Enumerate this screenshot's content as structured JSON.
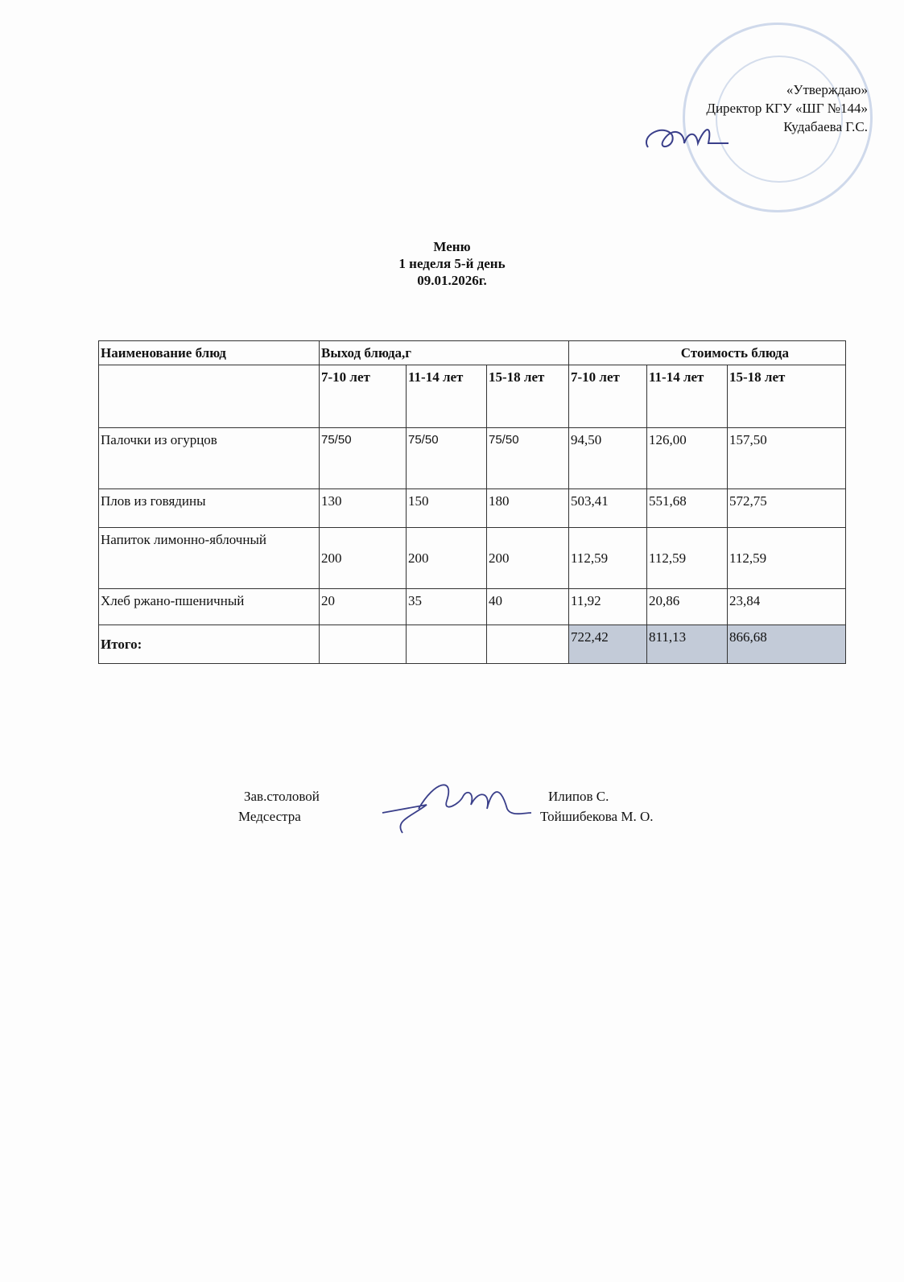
{
  "approval": {
    "line1": "«Утверждаю»",
    "line2": "Директор КГУ «ШГ №144»",
    "line3": "Кудабаева Г.С."
  },
  "title": {
    "line1": "Меню",
    "line2": "1 неделя 5-й день",
    "line3": "09.01.2026г."
  },
  "table": {
    "header": {
      "name": "Наименование блюд",
      "yield": "Выход блюда,г",
      "cost": "Стоимость блюда"
    },
    "age_groups": [
      "7-10 лет",
      "11-14 лет",
      "15-18 лет",
      "7-10 лет",
      "11-14 лет",
      "15-18 лет"
    ],
    "rows": [
      {
        "name": "Палочки из огурцов",
        "values": [
          "75/50",
          "75/50",
          "75/50",
          "94,50",
          "126,00",
          "157,50"
        ]
      },
      {
        "name": "Плов из говядины",
        "values": [
          "130",
          "150",
          "180",
          "503,41",
          "551,68",
          "572,75"
        ]
      },
      {
        "name": "Напиток лимонно-яблочный",
        "values": [
          "200",
          "200",
          "200",
          "112,59",
          "112,59",
          "112,59"
        ]
      },
      {
        "name": "Хлеб ржано-пшеничный",
        "values": [
          "20",
          "35",
          "40",
          "11,92",
          "20,86",
          "23,84"
        ]
      }
    ],
    "total": {
      "label": "Итого:",
      "values": [
        "",
        "",
        "",
        "722,42",
        "811,13",
        "866,68"
      ]
    }
  },
  "signatures": {
    "role1": "Зав.столовой",
    "name1": "Илипов С.",
    "role2": "Медсестра",
    "name2": "Тойшибекова М. О."
  },
  "colors": {
    "stamp": "#7896c8",
    "total_highlight": "#c3cbd8",
    "signature_ink": "#3a3f8a"
  }
}
